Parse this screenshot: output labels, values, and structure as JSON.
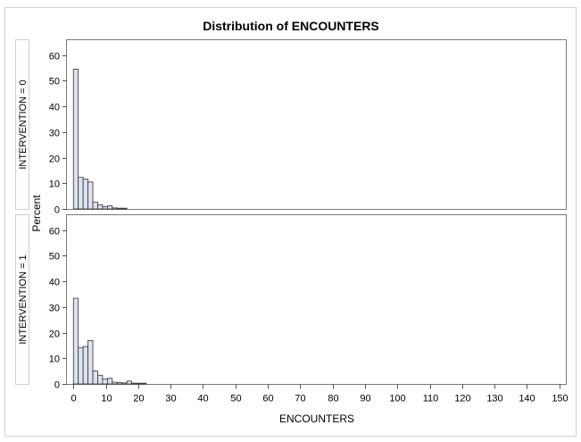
{
  "chart_data": {
    "type": "bar",
    "title": "Distribution of ENCOUNTERS",
    "xlabel": "ENCOUNTERS",
    "ylabel": "Percent",
    "xlim": [
      -2,
      152
    ],
    "ylim": [
      0,
      63
    ],
    "xticks": [
      0,
      10,
      20,
      30,
      40,
      50,
      60,
      70,
      80,
      90,
      100,
      110,
      120,
      130,
      140,
      150
    ],
    "yticks": [
      0,
      10,
      20,
      30,
      40,
      50,
      60
    ],
    "bin_width": 1.5,
    "colors": {
      "bar_fill": "#dde2f0",
      "bar_stroke": "#333333",
      "frame": "#7a7a7a",
      "outer_frame": "#c9cedb"
    },
    "panels": [
      {
        "label": "INTERVENTION = 0",
        "bins": [
          {
            "x": 0,
            "value": 54.5
          },
          {
            "x": 1.5,
            "value": 12.3
          },
          {
            "x": 3.0,
            "value": 11.6
          },
          {
            "x": 4.5,
            "value": 10.5
          },
          {
            "x": 6.0,
            "value": 2.7
          },
          {
            "x": 7.5,
            "value": 1.6
          },
          {
            "x": 9.0,
            "value": 0.9
          },
          {
            "x": 10.5,
            "value": 1.2
          },
          {
            "x": 12.0,
            "value": 0.4
          },
          {
            "x": 13.5,
            "value": 0.3
          },
          {
            "x": 15.0,
            "value": 0.3
          }
        ]
      },
      {
        "label": "INTERVENTION = 1",
        "bins": [
          {
            "x": 0,
            "value": 33.4
          },
          {
            "x": 1.5,
            "value": 14.2
          },
          {
            "x": 3.0,
            "value": 14.6
          },
          {
            "x": 4.5,
            "value": 16.9
          },
          {
            "x": 6.0,
            "value": 5.1
          },
          {
            "x": 7.5,
            "value": 3.4
          },
          {
            "x": 9.0,
            "value": 1.9
          },
          {
            "x": 10.5,
            "value": 2.2
          },
          {
            "x": 12.0,
            "value": 0.7
          },
          {
            "x": 13.5,
            "value": 0.5
          },
          {
            "x": 15.0,
            "value": 0.4
          },
          {
            "x": 16.5,
            "value": 1.1
          },
          {
            "x": 18.0,
            "value": 0.3
          },
          {
            "x": 19.5,
            "value": 0.3
          },
          {
            "x": 21.0,
            "value": 0.3
          }
        ]
      }
    ]
  }
}
